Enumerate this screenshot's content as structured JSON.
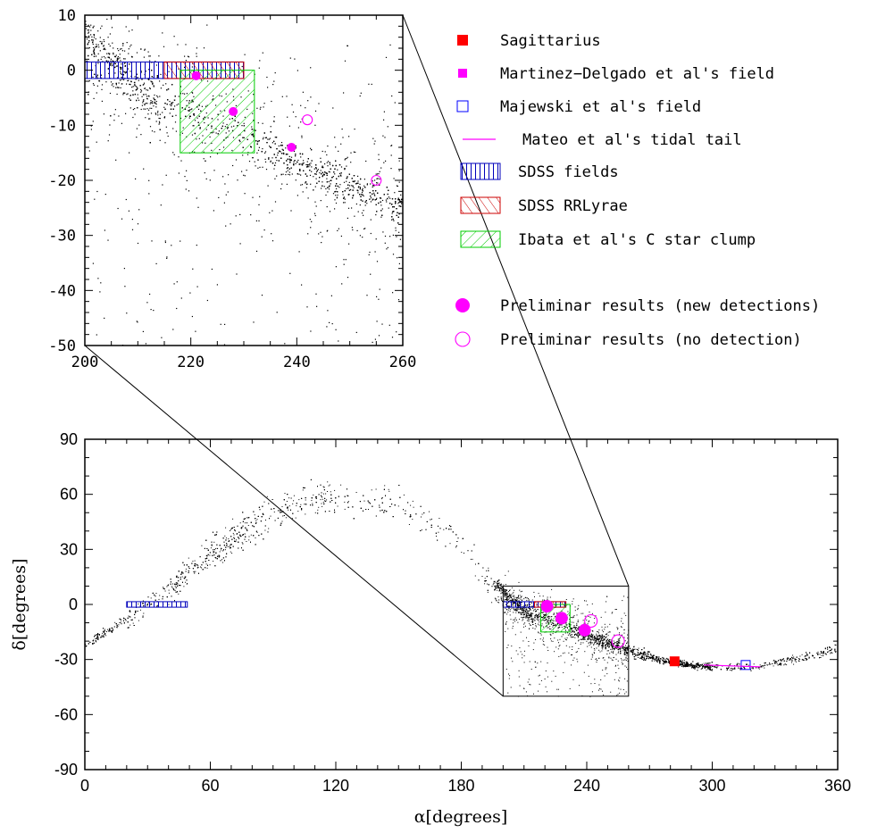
{
  "chart_data": [
    {
      "type": "scatter",
      "panel": "main",
      "title": "",
      "xlabel": "α[degrees]",
      "ylabel": "δ[degrees]",
      "xlim": [
        0,
        360
      ],
      "ylim": [
        -90,
        90
      ],
      "xticks": [
        "0",
        "60",
        "120",
        "180",
        "240",
        "300",
        "360"
      ],
      "yticks": [
        "-90",
        "-60",
        "-30",
        "0",
        "30",
        "60",
        "90"
      ],
      "zoom_box": {
        "x": [
          200,
          260
        ],
        "y": [
          -50,
          10
        ]
      },
      "series": [
        {
          "name": "Sagittarius",
          "marker": "filled-square",
          "color": "#ff0000",
          "points": [
            [
              282,
              -31
            ]
          ]
        },
        {
          "name": "Martinez-Delgado et al's field",
          "marker": "filled-square-small",
          "color": "#ff00ff",
          "points": [
            [
              221,
              -1
            ]
          ]
        },
        {
          "name": "Majewski et al's field",
          "marker": "open-square",
          "color": "#0000ff",
          "points": [
            [
              316,
              -33
            ]
          ]
        },
        {
          "name": "Mateo et al's tidal tail",
          "marker": "line",
          "color": "#ff00ff",
          "points": [
            [
              296,
              -33
            ],
            [
              323,
              -34
            ]
          ]
        },
        {
          "name": "SDSS fields",
          "marker": "hatched-rect-vertical",
          "color": "#0000bb",
          "rects": [
            [
              20,
              49,
              -1.5,
              1.5
            ],
            [
              200,
              230,
              -1.5,
              1.5
            ]
          ]
        },
        {
          "name": "SDSS RRLyrae",
          "marker": "hatched-rect-diagonal",
          "color": "#cc0000",
          "rects": [
            [
              215,
              230,
              -1.5,
              1.5
            ]
          ]
        },
        {
          "name": "Ibata et al's C star clump",
          "marker": "hatched-rect-diagonal",
          "color": "#00cc00",
          "rects": [
            [
              218,
              232,
              -15,
              0
            ]
          ]
        },
        {
          "name": "Preliminar results (new detections)",
          "marker": "filled-circle",
          "color": "#ff00ff",
          "points": [
            [
              221,
              -1
            ],
            [
              228,
              -7.5
            ],
            [
              239,
              -14
            ]
          ]
        },
        {
          "name": "Preliminar results (no detection)",
          "marker": "open-circle",
          "color": "#ff00ff",
          "points": [
            [
              242,
              -9
            ],
            [
              255,
              -20
            ]
          ]
        }
      ]
    },
    {
      "type": "scatter",
      "panel": "inset",
      "title": "",
      "xlim": [
        200,
        260
      ],
      "ylim": [
        -50,
        10
      ],
      "xticks": [
        "200",
        "220",
        "240",
        "260"
      ],
      "yticks": [
        "-50",
        "-40",
        "-30",
        "-20",
        "-10",
        "0",
        "10"
      ]
    }
  ],
  "legend": {
    "placement": "top-right",
    "items": [
      {
        "label": "Sagittarius",
        "marker": "filled-square",
        "color": "#ff0000"
      },
      {
        "label": "Martinez−Delgado et al's field",
        "marker": "filled-square-small",
        "color": "#ff00ff"
      },
      {
        "label": "Majewski et al's field",
        "marker": "open-square",
        "color": "#0000ff"
      },
      {
        "label": "Mateo et al's tidal tail",
        "marker": "line",
        "color": "#ff00ff"
      },
      {
        "label": "SDSS fields",
        "marker": "hatch-vertical",
        "color": "#0000bb"
      },
      {
        "label": "SDSS RRLyrae",
        "marker": "hatch-diagonal",
        "color": "#cc0000"
      },
      {
        "label": "Ibata et al's C star clump",
        "marker": "hatch-diagonal",
        "color": "#00cc00"
      },
      {
        "label": "Preliminar results (new detections)",
        "marker": "filled-circle",
        "color": "#ff00ff"
      },
      {
        "label": "Preliminar results (no detection)",
        "marker": "open-circle",
        "color": "#ff00ff"
      }
    ]
  }
}
